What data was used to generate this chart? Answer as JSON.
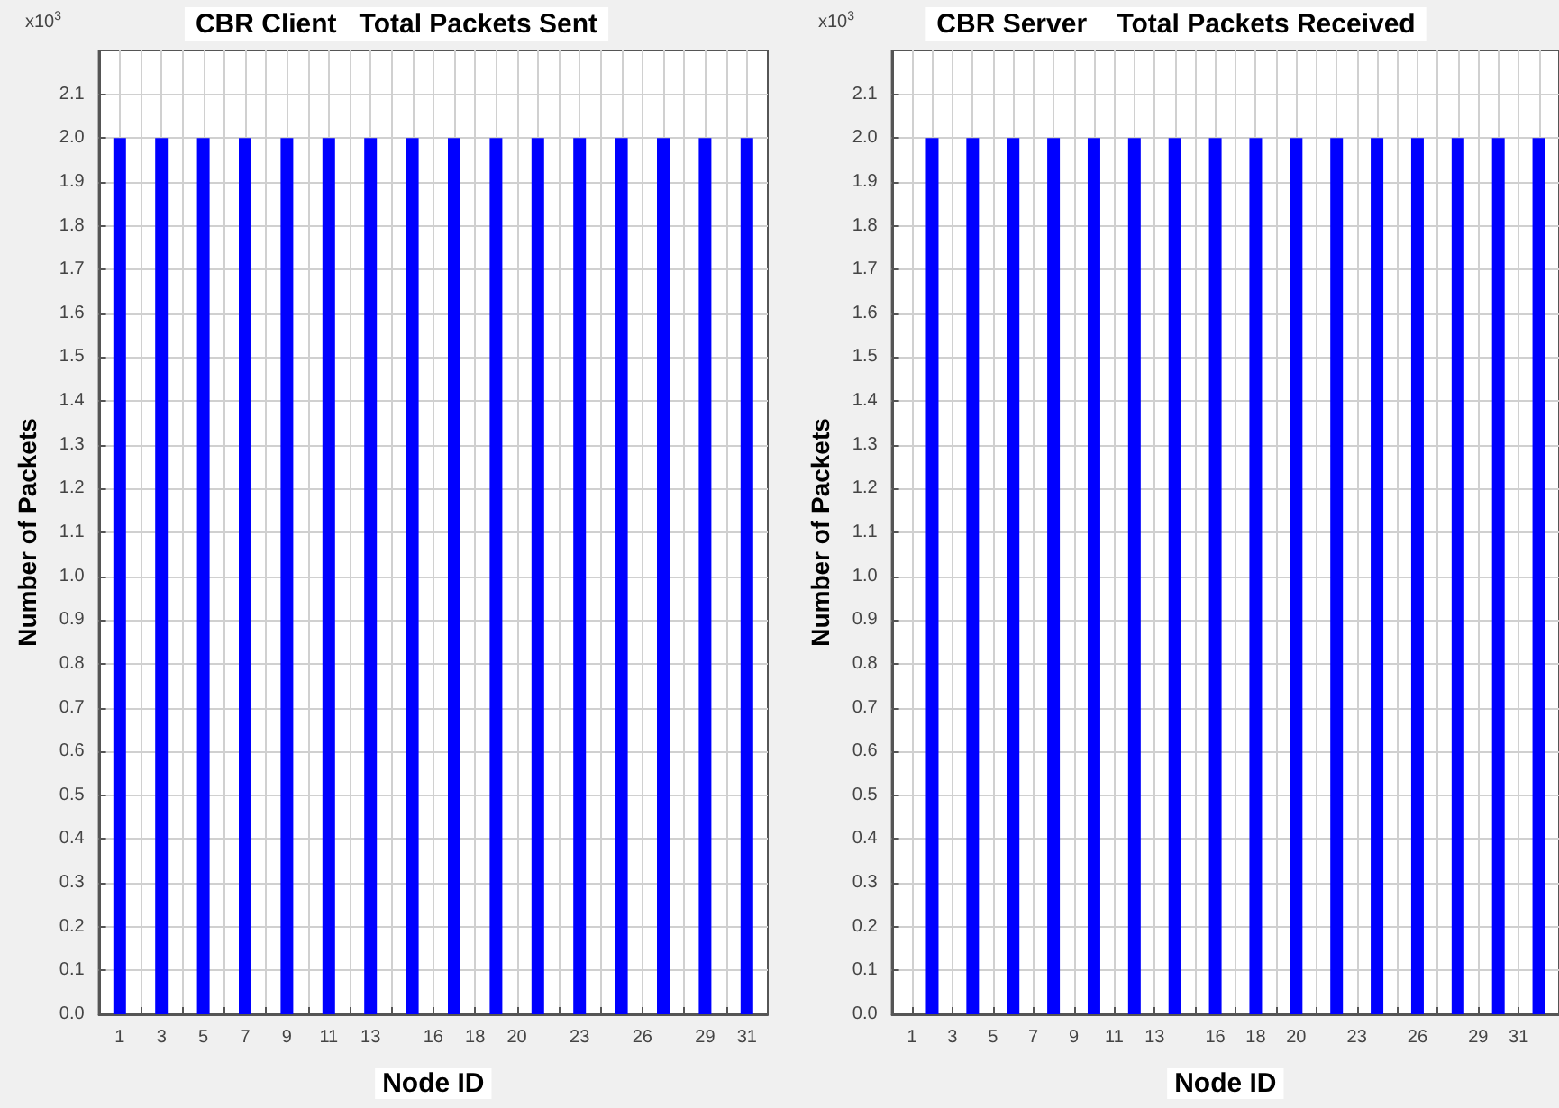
{
  "chart_data": [
    {
      "type": "bar",
      "title": "CBR Client   Total Packets Sent",
      "xlabel": "Node ID",
      "ylabel": "Number of Packets",
      "annotations": [
        "x10$^{3}$"
      ],
      "x": [
        1,
        3,
        5,
        7,
        9,
        11,
        13,
        15,
        17,
        19,
        21,
        23,
        25,
        27,
        29,
        31
      ],
      "values": [
        2.0,
        2.0,
        2.0,
        2.0,
        2.0,
        2.0,
        2.0,
        2.0,
        2.0,
        2.0,
        2.0,
        2.0,
        2.0,
        2.0,
        2.0,
        2.0
      ],
      "color": "#0000ff",
      "xlim": [
        0,
        32
      ],
      "ylim": [
        0,
        2.2
      ],
      "xticks": [
        1,
        {
          "value": 2,
          "label": null
        },
        3,
        {
          "value": 4,
          "label": null
        },
        5,
        {
          "value": 6,
          "label": null
        },
        7,
        {
          "value": 8,
          "label": null
        },
        9,
        {
          "value": 10,
          "label": null
        },
        11,
        {
          "value": 12,
          "label": null
        },
        13,
        {
          "value": 14,
          "label": null
        },
        {
          "value": 15,
          "label": null
        },
        16,
        {
          "value": 17,
          "label": null
        },
        18,
        {
          "value": 19,
          "label": null
        },
        20,
        {
          "value": 21,
          "label": null
        },
        {
          "value": 22,
          "label": null
        },
        23,
        {
          "value": 24,
          "label": null
        },
        {
          "value": 25,
          "label": null
        },
        26,
        {
          "value": 27,
          "label": null
        },
        {
          "value": 28,
          "label": null
        },
        29,
        {
          "value": 30,
          "label": null
        },
        31
      ],
      "yticks": [
        {
          "value": 0,
          "label": "0.0"
        },
        0.1,
        0.2,
        0.3,
        0.4,
        0.5,
        0.6,
        0.7,
        0.8,
        0.9,
        {
          "value": 1,
          "label": "1.0"
        },
        1.1,
        1.2,
        1.3,
        1.4,
        1.5,
        1.6,
        1.7,
        1.8,
        1.9,
        {
          "value": 2,
          "label": "2.0"
        },
        2.1
      ],
      "grid": true
    },
    {
      "type": "bar",
      "title": "CBR Server    Total Packets Received",
      "xlabel": "Node ID",
      "ylabel": "Number of Packets",
      "annotations": [
        "x10$^{3}$"
      ],
      "x": [
        2,
        4,
        6,
        8,
        10,
        12,
        14,
        16,
        18,
        20,
        22,
        24,
        26,
        28,
        30,
        32
      ],
      "values": [
        2.0,
        2.0,
        2.0,
        2.0,
        2.0,
        2.0,
        2.0,
        2.0,
        2.0,
        2.0,
        2.0,
        2.0,
        2.0,
        2.0,
        2.0,
        2.0
      ],
      "color": "#0000ff",
      "xlim": [
        0,
        33
      ],
      "ylim": [
        0,
        2.2
      ],
      "xticks": [
        1,
        {
          "value": 2,
          "label": null
        },
        3,
        {
          "value": 4,
          "label": null
        },
        5,
        {
          "value": 6,
          "label": null
        },
        7,
        {
          "value": 8,
          "label": null
        },
        9,
        {
          "value": 10,
          "label": null
        },
        11,
        {
          "value": 12,
          "label": null
        },
        13,
        {
          "value": 14,
          "label": null
        },
        {
          "value": 15,
          "label": null
        },
        16,
        {
          "value": 17,
          "label": null
        },
        18,
        {
          "value": 19,
          "label": null
        },
        20,
        {
          "value": 21,
          "label": null
        },
        {
          "value": 22,
          "label": null
        },
        23,
        {
          "value": 24,
          "label": null
        },
        {
          "value": 25,
          "label": null
        },
        26,
        {
          "value": 27,
          "label": null
        },
        {
          "value": 28,
          "label": null
        },
        29,
        {
          "value": 30,
          "label": null
        },
        31,
        {
          "value": 32,
          "label": null
        }
      ],
      "yticks": [
        {
          "value": 0,
          "label": "0.0"
        },
        0.1,
        0.2,
        0.3,
        0.4,
        0.5,
        0.6,
        0.7,
        0.8,
        0.9,
        {
          "value": 1,
          "label": "1.0"
        },
        1.1,
        1.2,
        1.3,
        1.4,
        1.5,
        1.6,
        1.7,
        1.8,
        1.9,
        {
          "value": 2,
          "label": "2.0"
        },
        2.1
      ],
      "grid": true
    }
  ]
}
